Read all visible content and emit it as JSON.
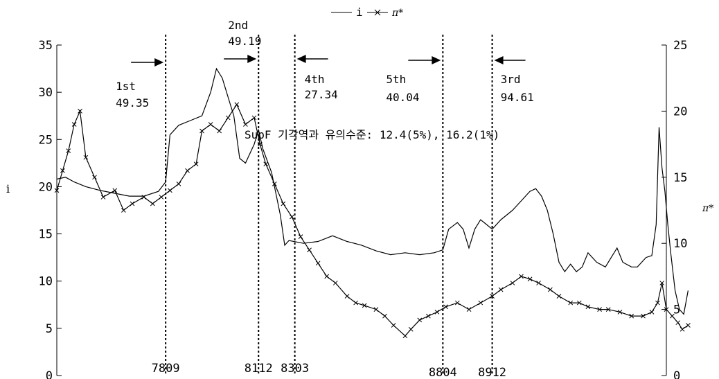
{
  "chart_data": {
    "type": "line",
    "legend": {
      "position": "top-center",
      "entries": [
        {
          "label": "i",
          "marker": "none"
        },
        {
          "label": "π*",
          "marker": "x"
        }
      ]
    },
    "left_axis": {
      "label": "i",
      "ylim": [
        0,
        35
      ],
      "ticks": [
        "0",
        "5",
        "10",
        "15",
        "20",
        "25",
        "30",
        "35"
      ]
    },
    "right_axis": {
      "label": "π*",
      "ylim": [
        0,
        25
      ],
      "ticks": [
        "0",
        "5",
        "10",
        "15",
        "20",
        "25"
      ]
    },
    "x_axis": {
      "range_years": [
        1975,
        1996
      ],
      "ticks": []
    },
    "breaks": [
      {
        "date": "7809",
        "x": 1978.75,
        "order": "1st",
        "stat": "49.35",
        "arrow": "right"
      },
      {
        "date": "8112",
        "x": 1981.95,
        "order": "2nd",
        "stat": "49.19",
        "arrow": "right"
      },
      {
        "date": "8303",
        "x": 1983.2,
        "order": "4th",
        "stat": "27.34",
        "arrow": "left"
      },
      {
        "date": "8804",
        "x": 1988.3,
        "order": "5th",
        "stat": "40.04",
        "arrow": "right"
      },
      {
        "date": "8912",
        "x": 1990.0,
        "order": "3rd",
        "stat": "94.61",
        "arrow": "left"
      }
    ],
    "note": "SupF 기각역과 유의수준:  12.4(5%), 16.2(1%)",
    "series": [
      {
        "name": "i",
        "axis": "left",
        "points": [
          [
            1975.0,
            20.8
          ],
          [
            1975.3,
            21.0
          ],
          [
            1975.6,
            20.5
          ],
          [
            1976.0,
            20.0
          ],
          [
            1976.5,
            19.6
          ],
          [
            1977.0,
            19.3
          ],
          [
            1977.5,
            19.0
          ],
          [
            1978.0,
            19.0
          ],
          [
            1978.5,
            19.5
          ],
          [
            1978.75,
            20.5
          ],
          [
            1978.9,
            25.5
          ],
          [
            1979.2,
            26.5
          ],
          [
            1979.6,
            27.0
          ],
          [
            1980.0,
            27.5
          ],
          [
            1980.3,
            30.0
          ],
          [
            1980.5,
            32.5
          ],
          [
            1980.7,
            31.5
          ],
          [
            1980.9,
            29.5
          ],
          [
            1981.1,
            27.5
          ],
          [
            1981.3,
            23.0
          ],
          [
            1981.5,
            22.5
          ],
          [
            1981.8,
            24.5
          ],
          [
            1981.95,
            26.0
          ],
          [
            1982.1,
            24.0
          ],
          [
            1982.4,
            21.5
          ],
          [
            1982.7,
            17.0
          ],
          [
            1982.85,
            13.8
          ],
          [
            1983.0,
            14.3
          ],
          [
            1983.5,
            14.0
          ],
          [
            1984.0,
            14.2
          ],
          [
            1984.5,
            14.8
          ],
          [
            1985.0,
            14.2
          ],
          [
            1985.5,
            13.8
          ],
          [
            1986.0,
            13.2
          ],
          [
            1986.5,
            12.8
          ],
          [
            1987.0,
            13.0
          ],
          [
            1987.5,
            12.8
          ],
          [
            1988.0,
            13.0
          ],
          [
            1988.3,
            13.3
          ],
          [
            1988.5,
            15.5
          ],
          [
            1988.8,
            16.2
          ],
          [
            1989.0,
            15.5
          ],
          [
            1989.2,
            13.5
          ],
          [
            1989.4,
            15.5
          ],
          [
            1989.6,
            16.5
          ],
          [
            1989.8,
            16.0
          ],
          [
            1990.0,
            15.5
          ],
          [
            1990.3,
            16.5
          ],
          [
            1990.7,
            17.5
          ],
          [
            1991.0,
            18.5
          ],
          [
            1991.3,
            19.5
          ],
          [
            1991.5,
            19.8
          ],
          [
            1991.7,
            19.0
          ],
          [
            1991.9,
            17.5
          ],
          [
            1992.1,
            15.0
          ],
          [
            1992.3,
            12.0
          ],
          [
            1992.5,
            11.0
          ],
          [
            1992.7,
            11.8
          ],
          [
            1992.9,
            11.0
          ],
          [
            1993.1,
            11.5
          ],
          [
            1993.3,
            13.0
          ],
          [
            1993.6,
            12.0
          ],
          [
            1993.9,
            11.5
          ],
          [
            1994.1,
            12.5
          ],
          [
            1994.3,
            13.5
          ],
          [
            1994.5,
            12.0
          ],
          [
            1994.8,
            11.5
          ],
          [
            1995.0,
            11.5
          ],
          [
            1995.3,
            12.5
          ],
          [
            1995.5,
            12.7
          ],
          [
            1995.65,
            16.0
          ],
          [
            1995.75,
            26.3
          ],
          [
            1995.85,
            22.0
          ],
          [
            1995.95,
            19.5
          ],
          [
            1996.05,
            16.0
          ],
          [
            1996.15,
            13.0
          ],
          [
            1996.3,
            9.0
          ],
          [
            1996.45,
            7.0
          ],
          [
            1996.6,
            6.5
          ],
          [
            1996.75,
            9.0
          ]
        ]
      },
      {
        "name": "π*",
        "axis": "right",
        "points": [
          [
            1975.0,
            14.0
          ],
          [
            1975.2,
            15.5
          ],
          [
            1975.4,
            17.0
          ],
          [
            1975.6,
            19.0
          ],
          [
            1975.8,
            20.0
          ],
          [
            1976.0,
            16.5
          ],
          [
            1976.3,
            15.0
          ],
          [
            1976.6,
            13.5
          ],
          [
            1977.0,
            14.0
          ],
          [
            1977.3,
            12.5
          ],
          [
            1977.6,
            13.0
          ],
          [
            1978.0,
            13.5
          ],
          [
            1978.3,
            13.0
          ],
          [
            1978.6,
            13.5
          ],
          [
            1978.9,
            14.0
          ],
          [
            1979.2,
            14.5
          ],
          [
            1979.5,
            15.5
          ],
          [
            1979.8,
            16.0
          ],
          [
            1980.0,
            18.5
          ],
          [
            1980.3,
            19.0
          ],
          [
            1980.6,
            18.5
          ],
          [
            1980.9,
            19.5
          ],
          [
            1981.2,
            20.5
          ],
          [
            1981.5,
            19.0
          ],
          [
            1981.8,
            19.5
          ],
          [
            1982.0,
            17.5
          ],
          [
            1982.2,
            16.0
          ],
          [
            1982.5,
            14.5
          ],
          [
            1982.8,
            13.0
          ],
          [
            1983.1,
            12.0
          ],
          [
            1983.4,
            10.5
          ],
          [
            1983.7,
            9.5
          ],
          [
            1984.0,
            8.5
          ],
          [
            1984.3,
            7.5
          ],
          [
            1984.6,
            7.0
          ],
          [
            1985.0,
            6.0
          ],
          [
            1985.3,
            5.5
          ],
          [
            1985.6,
            5.3
          ],
          [
            1986.0,
            5.0
          ],
          [
            1986.3,
            4.5
          ],
          [
            1986.6,
            3.8
          ],
          [
            1987.0,
            3.0
          ],
          [
            1987.2,
            3.5
          ],
          [
            1987.5,
            4.2
          ],
          [
            1987.8,
            4.5
          ],
          [
            1988.1,
            4.8
          ],
          [
            1988.4,
            5.2
          ],
          [
            1988.8,
            5.5
          ],
          [
            1989.2,
            5.0
          ],
          [
            1989.6,
            5.5
          ],
          [
            1990.0,
            6.0
          ],
          [
            1990.3,
            6.5
          ],
          [
            1990.7,
            7.0
          ],
          [
            1991.0,
            7.5
          ],
          [
            1991.3,
            7.3
          ],
          [
            1991.6,
            7.0
          ],
          [
            1992.0,
            6.5
          ],
          [
            1992.3,
            6.0
          ],
          [
            1992.7,
            5.5
          ],
          [
            1993.0,
            5.5
          ],
          [
            1993.3,
            5.2
          ],
          [
            1993.7,
            5.0
          ],
          [
            1994.0,
            5.0
          ],
          [
            1994.4,
            4.8
          ],
          [
            1994.8,
            4.5
          ],
          [
            1995.2,
            4.5
          ],
          [
            1995.5,
            4.8
          ],
          [
            1995.7,
            5.5
          ],
          [
            1995.85,
            7.0
          ],
          [
            1996.0,
            5.0
          ],
          [
            1996.2,
            4.5
          ],
          [
            1996.4,
            4.0
          ],
          [
            1996.55,
            3.5
          ],
          [
            1996.75,
            3.8
          ]
        ]
      }
    ]
  }
}
